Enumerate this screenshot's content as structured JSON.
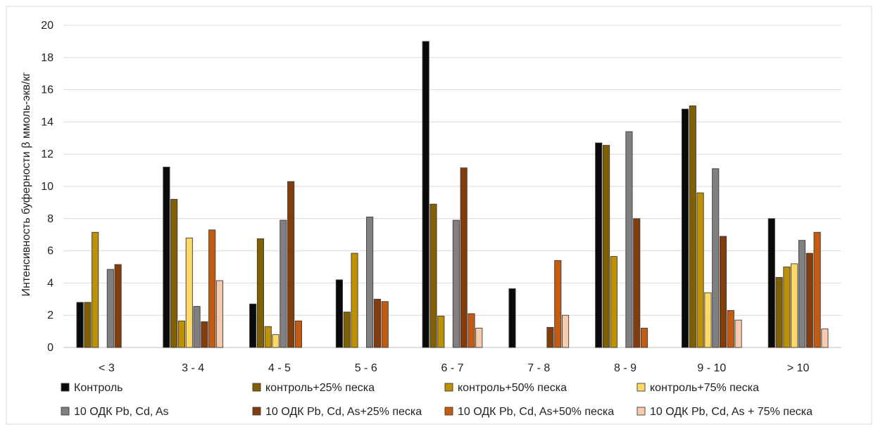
{
  "chart_data": {
    "type": "bar",
    "title": "",
    "xlabel": "",
    "ylabel": "Интенсивность буферности β  ммоль-экв/кг",
    "ylim": [
      0,
      20
    ],
    "yticks": [
      0,
      2,
      4,
      6,
      8,
      10,
      12,
      14,
      16,
      18,
      20
    ],
    "grid": true,
    "legend_position": "bottom",
    "categories": [
      "< 3",
      "3 - 4",
      "4 - 5",
      "5 - 6",
      "6 - 7",
      "7 - 8",
      "8 - 9",
      "9 - 10",
      "> 10"
    ],
    "series": [
      {
        "name": "Контроль",
        "color": "#0a0a0a",
        "values": [
          2.8,
          11.2,
          2.7,
          4.2,
          19.0,
          3.65,
          12.7,
          14.8,
          8.0
        ]
      },
      {
        "name": "контроль+25% песка",
        "color": "#806000",
        "values": [
          2.8,
          9.2,
          6.75,
          2.2,
          8.9,
          0,
          12.55,
          15.0,
          4.35
        ]
      },
      {
        "name": "контроль+50% песка",
        "color": "#bf9000",
        "values": [
          7.15,
          1.65,
          1.3,
          5.85,
          1.95,
          0,
          5.65,
          9.6,
          5.0
        ]
      },
      {
        "name": "контроль+75% песка",
        "color": "#ffd966",
        "values": [
          0,
          6.8,
          0.8,
          0,
          0,
          0,
          0,
          3.4,
          5.2
        ]
      },
      {
        "name": "10 ОДК Pb, Cd, As",
        "color": "#808080",
        "values": [
          4.85,
          2.55,
          7.9,
          8.1,
          7.9,
          0,
          13.4,
          11.1,
          6.65
        ]
      },
      {
        "name": "10 ОДК Pb, Cd, As+25% песка",
        "color": "#843c0c",
        "values": [
          5.15,
          1.6,
          10.3,
          3.0,
          11.15,
          1.25,
          8.0,
          6.9,
          5.85
        ]
      },
      {
        "name": "10 ОДК Pb, Cd, As+50% песка",
        "color": "#c55a11",
        "values": [
          0,
          7.3,
          1.65,
          2.85,
          2.1,
          5.4,
          1.2,
          2.3,
          7.15
        ]
      },
      {
        "name": "10 ОДК Pb, Cd, As + 75% песка",
        "color": "#f8cbad",
        "values": [
          0,
          4.15,
          0,
          0,
          1.2,
          2.0,
          0,
          1.7,
          1.15
        ]
      }
    ]
  }
}
